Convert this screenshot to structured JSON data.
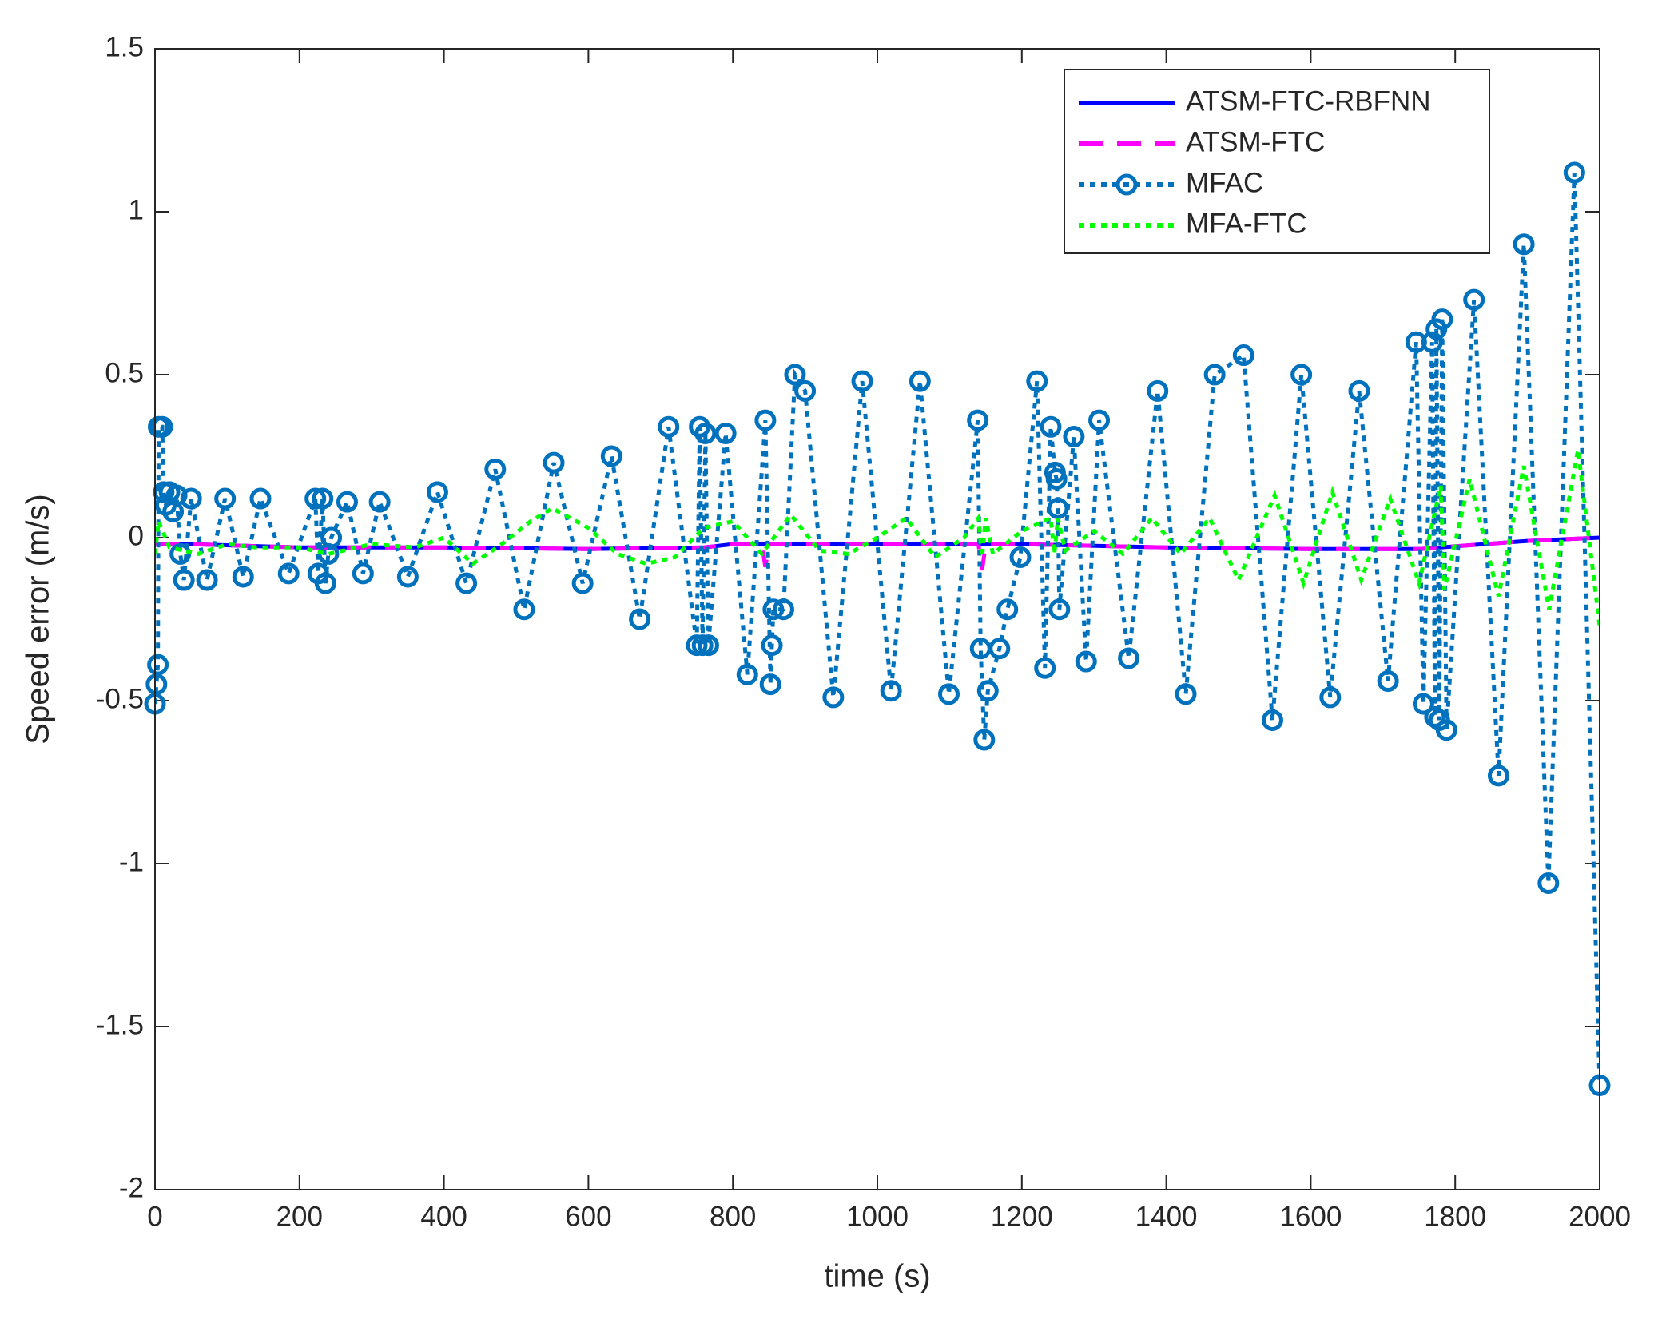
{
  "chart_data": {
    "type": "line",
    "xlabel": "time (s)",
    "ylabel": "Speed error (m/s)",
    "xlim": [
      0,
      2000
    ],
    "ylim": [
      -2,
      1.5
    ],
    "xticks": [
      0,
      200,
      400,
      600,
      800,
      1000,
      1200,
      1400,
      1600,
      1800,
      2000
    ],
    "yticks": [
      -2,
      -1.5,
      -1,
      -0.5,
      0,
      0.5,
      1,
      1.5
    ],
    "legend": "upper right",
    "series": [
      {
        "name": "ATSM-FTC-RBFNN",
        "color": "#0000ff",
        "line_style": "solid",
        "x": [
          0,
          50,
          200,
          400,
          600,
          760,
          800,
          1000,
          1200,
          1400,
          1600,
          1750,
          1900,
          2000
        ],
        "values": [
          -0.02,
          -0.02,
          -0.03,
          -0.03,
          -0.035,
          -0.03,
          -0.02,
          -0.02,
          -0.02,
          -0.03,
          -0.035,
          -0.035,
          -0.01,
          0.0
        ]
      },
      {
        "name": "ATSM-FTC",
        "color": "#ff00ff",
        "line_style": "dashed",
        "x": [
          0,
          50,
          200,
          400,
          600,
          760,
          800,
          840,
          845,
          850,
          1000,
          1140,
          1145,
          1150,
          1200,
          1400,
          1600,
          1750,
          1900,
          2000
        ],
        "values": [
          -0.02,
          -0.02,
          -0.03,
          -0.03,
          -0.035,
          -0.03,
          -0.02,
          -0.02,
          -0.09,
          -0.02,
          -0.02,
          -0.02,
          -0.1,
          -0.02,
          -0.02,
          -0.03,
          -0.035,
          -0.035,
          -0.01,
          0.0
        ]
      },
      {
        "name": "MFAC",
        "color": "#0072bd",
        "line_style": "dotted",
        "marker": "o",
        "x": [
          0,
          2,
          4,
          5,
          10,
          12,
          15,
          20,
          25,
          30,
          35,
          40,
          50,
          72,
          97,
          122,
          146,
          185,
          222,
          226,
          232,
          236,
          240,
          244,
          266,
          288,
          311,
          350,
          391,
          431,
          471,
          511,
          552,
          592,
          632,
          671,
          711,
          750,
          754,
          758,
          762,
          766,
          790,
          820,
          845,
          852,
          854,
          856,
          870,
          886,
          900,
          939,
          979,
          1019,
          1059,
          1099,
          1139,
          1143,
          1148,
          1153,
          1169,
          1180,
          1198,
          1221,
          1232,
          1240,
          1246,
          1248,
          1250,
          1252,
          1272,
          1289,
          1307,
          1348,
          1388,
          1427,
          1467,
          1507,
          1547,
          1587,
          1627,
          1667,
          1707,
          1746,
          1756,
          1768,
          1772,
          1774,
          1778,
          1782,
          1788,
          1826,
          1860,
          1895,
          1929,
          1965,
          2000
        ],
        "values": [
          -0.51,
          -0.45,
          -0.39,
          0.34,
          0.34,
          0.14,
          0.1,
          0.14,
          0.08,
          0.13,
          -0.05,
          -0.13,
          0.12,
          -0.13,
          0.12,
          -0.12,
          0.12,
          -0.11,
          0.12,
          -0.11,
          0.12,
          -0.14,
          -0.05,
          0.0,
          0.11,
          -0.11,
          0.11,
          -0.12,
          0.14,
          -0.14,
          0.21,
          -0.22,
          0.23,
          -0.14,
          0.25,
          -0.25,
          0.34,
          -0.33,
          0.34,
          -0.33,
          0.32,
          -0.33,
          0.32,
          -0.42,
          0.36,
          -0.45,
          -0.33,
          -0.22,
          -0.22,
          0.5,
          0.45,
          -0.49,
          0.48,
          -0.47,
          0.48,
          -0.48,
          0.36,
          -0.34,
          -0.62,
          -0.47,
          -0.34,
          -0.22,
          -0.06,
          0.48,
          -0.4,
          0.34,
          0.2,
          0.18,
          0.09,
          -0.22,
          0.31,
          -0.38,
          0.36,
          -0.37,
          0.45,
          -0.48,
          0.5,
          0.56,
          -0.56,
          0.5,
          -0.49,
          0.45,
          -0.44,
          0.6,
          -0.51,
          0.6,
          -0.55,
          0.64,
          -0.56,
          0.67,
          -0.59,
          0.73,
          -0.73,
          0.9,
          -1.06,
          1.12,
          -1.68
        ]
      },
      {
        "name": "MFA-FTC",
        "color": "#00ff00",
        "line_style": "dotted",
        "x": [
          0,
          5,
          20,
          60,
          100,
          140,
          200,
          240,
          300,
          360,
          400,
          440,
          480,
          520,
          550,
          600,
          640,
          680,
          720,
          760,
          800,
          840,
          880,
          920,
          960,
          1000,
          1040,
          1080,
          1120,
          1140,
          1145,
          1150,
          1160,
          1200,
          1240,
          1245,
          1250,
          1260,
          1300,
          1340,
          1380,
          1420,
          1460,
          1500,
          1550,
          1590,
          1630,
          1670,
          1710,
          1750,
          1780,
          1785,
          1820,
          1860,
          1895,
          1930,
          1970,
          2000
        ],
        "values": [
          -0.05,
          0.05,
          -0.03,
          -0.05,
          -0.02,
          -0.03,
          -0.03,
          -0.05,
          -0.02,
          -0.03,
          0.0,
          -0.08,
          -0.02,
          0.05,
          0.09,
          0.03,
          -0.05,
          -0.08,
          -0.06,
          0.03,
          0.05,
          -0.05,
          0.07,
          -0.04,
          -0.05,
          0.0,
          0.06,
          -0.06,
          0.0,
          0.06,
          -0.06,
          0.06,
          -0.05,
          0.02,
          0.06,
          -0.05,
          0.06,
          -0.04,
          0.02,
          -0.05,
          0.06,
          -0.05,
          0.06,
          -0.13,
          0.13,
          -0.14,
          0.14,
          -0.13,
          0.12,
          -0.14,
          0.16,
          -0.16,
          0.18,
          -0.18,
          0.22,
          -0.22,
          0.27,
          -0.27
        ]
      }
    ]
  }
}
